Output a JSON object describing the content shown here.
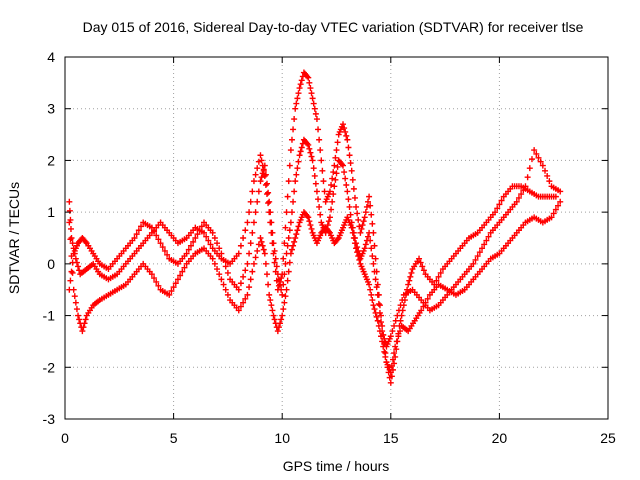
{
  "chart_data": {
    "type": "scatter",
    "title": "Day 015 of 2016, Sidereal Day-to-day VTEC variation (SDTVAR) for receiver tlse",
    "xlabel": "GPS time / hours",
    "ylabel": "SDTVAR / TECUs",
    "xlim": [
      0,
      25
    ],
    "ylim": [
      -3,
      4
    ],
    "xticks": [
      0,
      5,
      10,
      15,
      20,
      25
    ],
    "yticks": [
      -3,
      -2,
      -1,
      0,
      1,
      2,
      3,
      4
    ],
    "grid": true,
    "marker": "+",
    "color": "#ff0000",
    "series": [
      {
        "values_xy": [
          [
            0.2,
            1.2
          ],
          [
            0.3,
            0.5
          ],
          [
            0.5,
            0.1
          ],
          [
            0.7,
            -0.2
          ],
          [
            1.0,
            -0.1
          ],
          [
            1.3,
            0.0
          ],
          [
            1.6,
            -0.2
          ],
          [
            2.0,
            -0.3
          ],
          [
            2.4,
            -0.2
          ],
          [
            2.8,
            0.0
          ],
          [
            3.2,
            0.2
          ],
          [
            3.6,
            0.4
          ],
          [
            4.0,
            0.6
          ],
          [
            4.4,
            0.8
          ],
          [
            4.8,
            0.6
          ],
          [
            5.2,
            0.4
          ],
          [
            5.6,
            0.5
          ],
          [
            6.0,
            0.7
          ],
          [
            6.4,
            0.6
          ],
          [
            6.8,
            0.3
          ],
          [
            7.2,
            0.1
          ],
          [
            7.6,
            0.0
          ],
          [
            8.0,
            0.2
          ],
          [
            8.4,
            0.8
          ],
          [
            8.7,
            1.6
          ],
          [
            9.0,
            2.1
          ],
          [
            9.2,
            1.7
          ],
          [
            9.4,
            1.0
          ],
          [
            9.6,
            0.2
          ],
          [
            9.8,
            -0.5
          ],
          [
            10.0,
            -0.2
          ],
          [
            10.2,
            1.0
          ],
          [
            10.4,
            2.2
          ],
          [
            10.6,
            3.0
          ],
          [
            10.8,
            3.4
          ],
          [
            11.0,
            3.7
          ],
          [
            11.2,
            3.6
          ],
          [
            11.4,
            3.2
          ],
          [
            11.6,
            2.8
          ],
          [
            11.8,
            2.0
          ],
          [
            12.0,
            1.2
          ],
          [
            12.2,
            1.4
          ],
          [
            12.4,
            1.9
          ],
          [
            12.6,
            2.5
          ],
          [
            12.8,
            2.7
          ],
          [
            13.0,
            2.4
          ],
          [
            13.2,
            1.8
          ],
          [
            13.4,
            1.1
          ],
          [
            13.6,
            0.6
          ],
          [
            13.8,
            0.9
          ],
          [
            14.0,
            1.3
          ],
          [
            14.2,
            0.6
          ],
          [
            14.4,
            -0.4
          ],
          [
            14.6,
            -1.2
          ],
          [
            14.8,
            -1.9
          ],
          [
            15.0,
            -2.3
          ],
          [
            15.2,
            -1.8
          ],
          [
            15.4,
            -1.2
          ],
          [
            15.6,
            -0.8
          ],
          [
            15.8,
            -0.4
          ],
          [
            16.0,
            -0.1
          ],
          [
            16.3,
            0.1
          ],
          [
            16.6,
            -0.2
          ],
          [
            17.0,
            -0.4
          ],
          [
            17.4,
            -0.1
          ],
          [
            17.8,
            0.1
          ],
          [
            18.2,
            0.3
          ],
          [
            18.6,
            0.5
          ],
          [
            19.0,
            0.6
          ],
          [
            19.4,
            0.8
          ],
          [
            19.8,
            1.0
          ],
          [
            20.2,
            1.3
          ],
          [
            20.6,
            1.5
          ],
          [
            21.0,
            1.5
          ],
          [
            21.4,
            1.4
          ],
          [
            21.8,
            1.3
          ],
          [
            22.2,
            1.3
          ],
          [
            22.6,
            1.3
          ]
        ]
      },
      {
        "values_xy": [
          [
            0.2,
            -0.5
          ],
          [
            0.4,
            0.2
          ],
          [
            0.6,
            0.4
          ],
          [
            0.8,
            0.5
          ],
          [
            1.0,
            0.4
          ],
          [
            1.3,
            0.2
          ],
          [
            1.6,
            0.0
          ],
          [
            2.0,
            -0.1
          ],
          [
            2.4,
            0.1
          ],
          [
            2.8,
            0.3
          ],
          [
            3.2,
            0.5
          ],
          [
            3.6,
            0.8
          ],
          [
            4.0,
            0.7
          ],
          [
            4.4,
            0.4
          ],
          [
            4.8,
            0.1
          ],
          [
            5.2,
            0.0
          ],
          [
            5.6,
            0.2
          ],
          [
            6.0,
            0.5
          ],
          [
            6.4,
            0.8
          ],
          [
            6.8,
            0.6
          ],
          [
            7.2,
            0.2
          ],
          [
            7.6,
            -0.3
          ],
          [
            8.0,
            -0.5
          ],
          [
            8.4,
            0.0
          ],
          [
            8.7,
            0.8
          ],
          [
            9.0,
            1.6
          ],
          [
            9.2,
            1.9
          ],
          [
            9.4,
            1.2
          ],
          [
            9.6,
            0.4
          ],
          [
            9.8,
            -0.2
          ],
          [
            10.0,
            -0.6
          ],
          [
            10.2,
            0.2
          ],
          [
            10.4,
            0.8
          ],
          [
            10.6,
            1.6
          ],
          [
            10.8,
            2.1
          ],
          [
            11.0,
            2.4
          ],
          [
            11.2,
            2.3
          ],
          [
            11.4,
            2.0
          ],
          [
            11.6,
            1.4
          ],
          [
            11.8,
            0.8
          ],
          [
            12.0,
            0.6
          ],
          [
            12.2,
            0.9
          ],
          [
            12.4,
            1.5
          ],
          [
            12.6,
            2.0
          ],
          [
            12.8,
            1.9
          ],
          [
            13.0,
            1.4
          ],
          [
            13.2,
            0.8
          ],
          [
            13.4,
            0.4
          ],
          [
            13.6,
            0.1
          ],
          [
            13.8,
            0.3
          ],
          [
            14.0,
            0.6
          ],
          [
            14.2,
            0.0
          ],
          [
            14.4,
            -0.6
          ],
          [
            14.6,
            -1.3
          ],
          [
            14.8,
            -1.6
          ],
          [
            15.0,
            -1.4
          ],
          [
            15.3,
            -1.0
          ],
          [
            15.6,
            -0.6
          ],
          [
            16.0,
            -0.5
          ],
          [
            16.4,
            -0.7
          ],
          [
            16.8,
            -0.9
          ],
          [
            17.2,
            -0.8
          ],
          [
            17.6,
            -0.6
          ],
          [
            18.0,
            -0.4
          ],
          [
            18.4,
            -0.2
          ],
          [
            18.8,
            0.0
          ],
          [
            19.2,
            0.3
          ],
          [
            19.6,
            0.6
          ],
          [
            20.0,
            0.8
          ],
          [
            20.4,
            1.0
          ],
          [
            20.8,
            1.2
          ],
          [
            21.2,
            1.5
          ],
          [
            21.6,
            2.2
          ],
          [
            22.0,
            1.9
          ],
          [
            22.4,
            1.5
          ],
          [
            22.8,
            1.4
          ]
        ]
      },
      {
        "values_xy": [
          [
            0.2,
            0.8
          ],
          [
            0.4,
            -0.5
          ],
          [
            0.6,
            -1.0
          ],
          [
            0.8,
            -1.3
          ],
          [
            1.0,
            -1.0
          ],
          [
            1.3,
            -0.8
          ],
          [
            1.6,
            -0.7
          ],
          [
            2.0,
            -0.6
          ],
          [
            2.4,
            -0.5
          ],
          [
            2.8,
            -0.4
          ],
          [
            3.2,
            -0.2
          ],
          [
            3.6,
            0.0
          ],
          [
            4.0,
            -0.2
          ],
          [
            4.4,
            -0.5
          ],
          [
            4.8,
            -0.6
          ],
          [
            5.2,
            -0.3
          ],
          [
            5.6,
            0.0
          ],
          [
            6.0,
            0.2
          ],
          [
            6.4,
            0.3
          ],
          [
            6.8,
            0.1
          ],
          [
            7.2,
            -0.3
          ],
          [
            7.6,
            -0.7
          ],
          [
            8.0,
            -0.9
          ],
          [
            8.4,
            -0.6
          ],
          [
            8.7,
            0.0
          ],
          [
            9.0,
            0.5
          ],
          [
            9.2,
            0.2
          ],
          [
            9.4,
            -0.6
          ],
          [
            9.6,
            -1.0
          ],
          [
            9.8,
            -1.3
          ],
          [
            10.0,
            -1.0
          ],
          [
            10.2,
            -0.5
          ],
          [
            10.4,
            0.2
          ],
          [
            10.6,
            0.5
          ],
          [
            10.8,
            0.8
          ],
          [
            11.0,
            1.0
          ],
          [
            11.2,
            0.9
          ],
          [
            11.4,
            0.6
          ],
          [
            11.6,
            0.4
          ],
          [
            11.8,
            0.6
          ],
          [
            12.0,
            0.7
          ],
          [
            12.2,
            0.6
          ],
          [
            12.4,
            0.4
          ],
          [
            12.6,
            0.5
          ],
          [
            12.8,
            0.7
          ],
          [
            13.0,
            0.9
          ],
          [
            13.2,
            0.7
          ],
          [
            13.4,
            0.3
          ],
          [
            13.6,
            0.0
          ],
          [
            13.8,
            -0.2
          ],
          [
            14.0,
            -0.4
          ],
          [
            14.2,
            -0.8
          ],
          [
            14.4,
            -1.1
          ],
          [
            14.6,
            -1.5
          ],
          [
            14.8,
            -1.9
          ],
          [
            15.0,
            -2.1
          ],
          [
            15.2,
            -1.6
          ],
          [
            15.5,
            -1.2
          ],
          [
            15.8,
            -1.3
          ],
          [
            16.1,
            -1.1
          ],
          [
            16.4,
            -0.9
          ],
          [
            16.8,
            -0.6
          ],
          [
            17.2,
            -0.4
          ],
          [
            17.6,
            -0.5
          ],
          [
            18.0,
            -0.6
          ],
          [
            18.4,
            -0.5
          ],
          [
            18.8,
            -0.3
          ],
          [
            19.2,
            -0.1
          ],
          [
            19.6,
            0.1
          ],
          [
            20.0,
            0.2
          ],
          [
            20.4,
            0.4
          ],
          [
            20.8,
            0.6
          ],
          [
            21.2,
            0.8
          ],
          [
            21.6,
            0.9
          ],
          [
            22.0,
            0.8
          ],
          [
            22.4,
            0.9
          ],
          [
            22.8,
            1.2
          ]
        ]
      }
    ]
  }
}
